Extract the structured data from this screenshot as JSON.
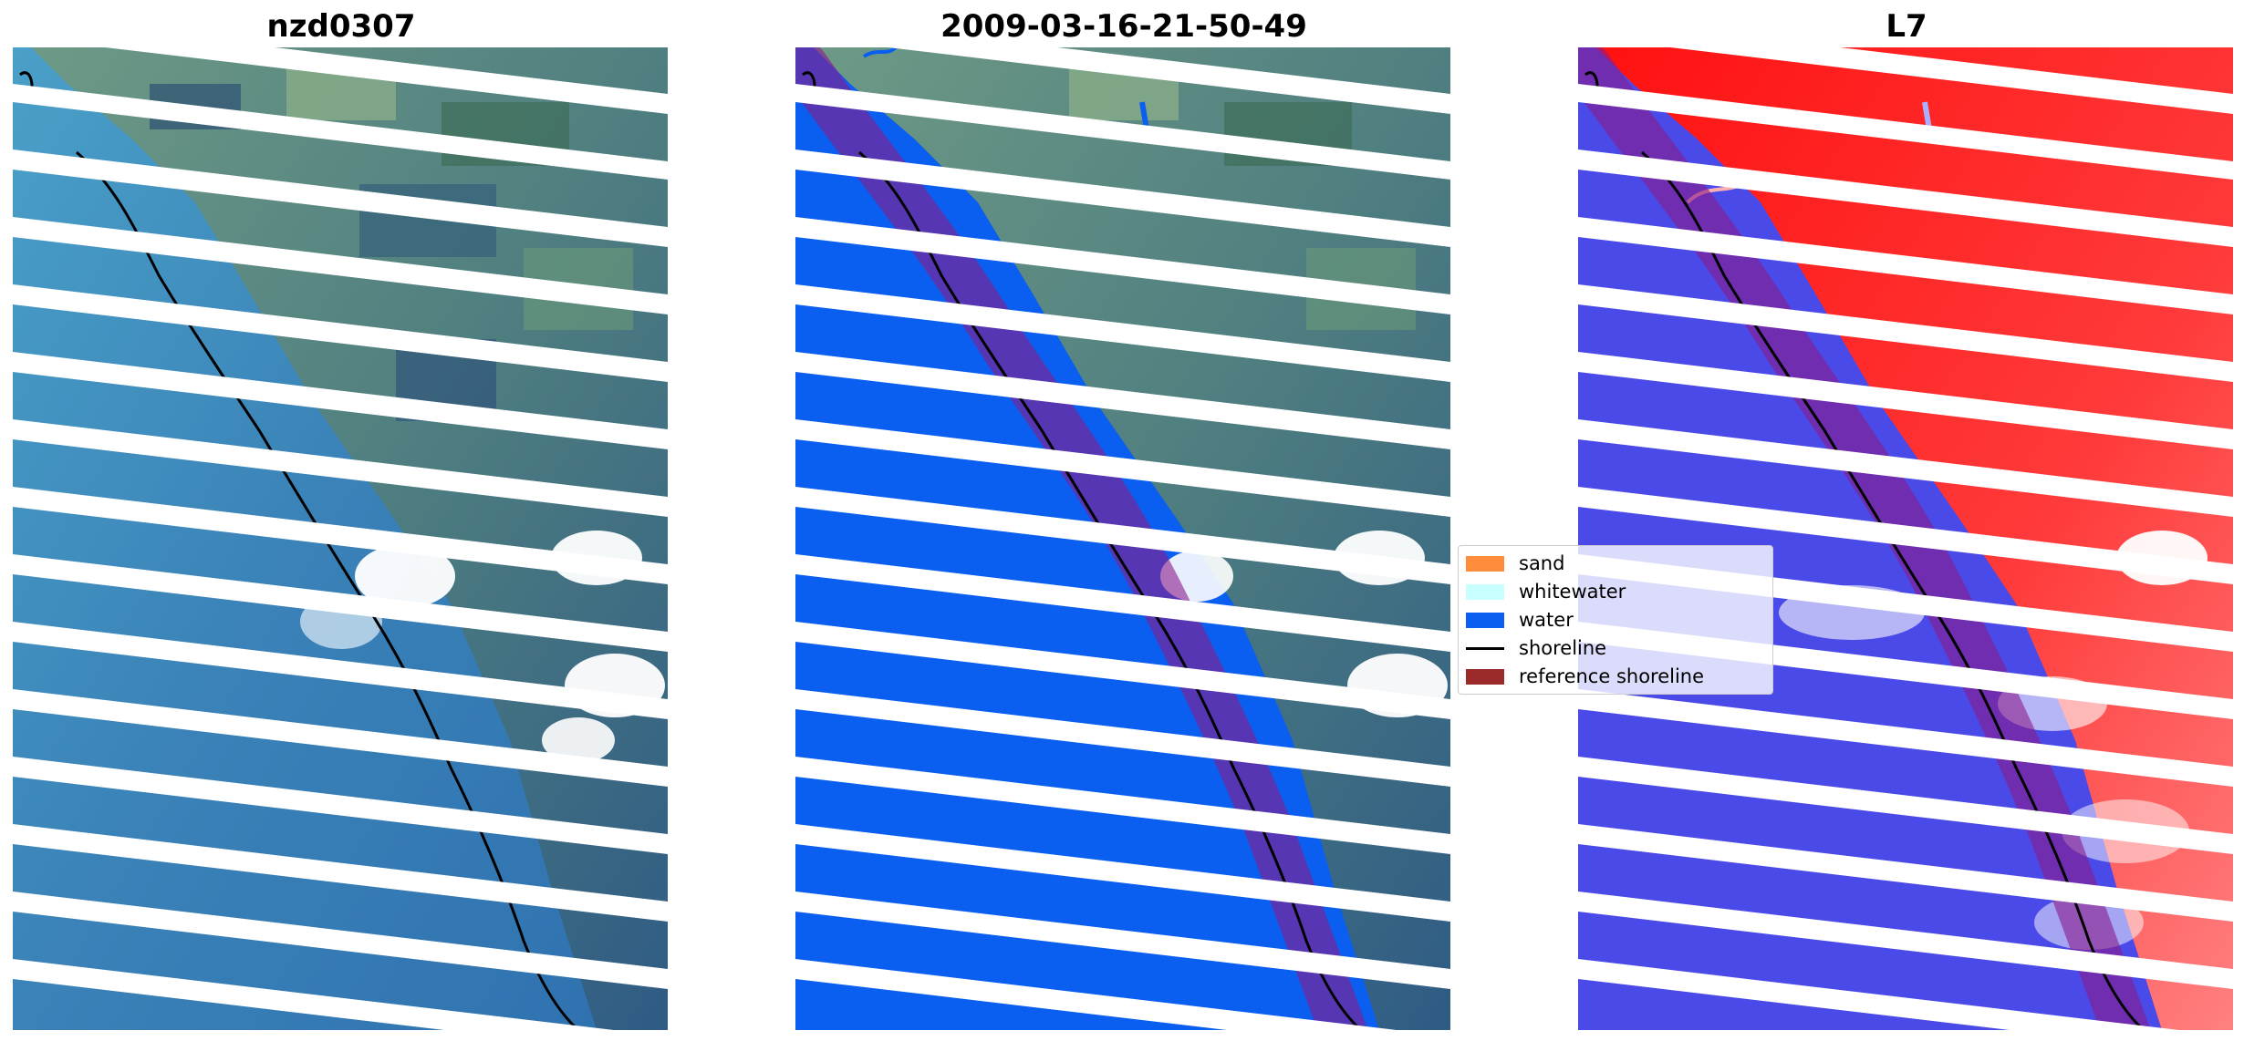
{
  "panels": [
    {
      "title": "nzd0307"
    },
    {
      "title": "2009-03-16-21-50-49"
    },
    {
      "title": "L7"
    }
  ],
  "legend": {
    "items": [
      {
        "label": "sand",
        "color": "#ff8c3a"
      },
      {
        "label": "whitewater",
        "color": "#c8ffff"
      },
      {
        "label": "water",
        "color": "#0a5ff0"
      },
      {
        "label": "shoreline",
        "color": "#000000"
      },
      {
        "label": "reference shoreline",
        "color": "#9b2a2a"
      }
    ]
  },
  "colors": {
    "water_class": "#0a5ff0",
    "reference_buffer": "#8b1a8a",
    "land_red": "#ff1a1a",
    "water_blue": "#4a4ae8"
  }
}
